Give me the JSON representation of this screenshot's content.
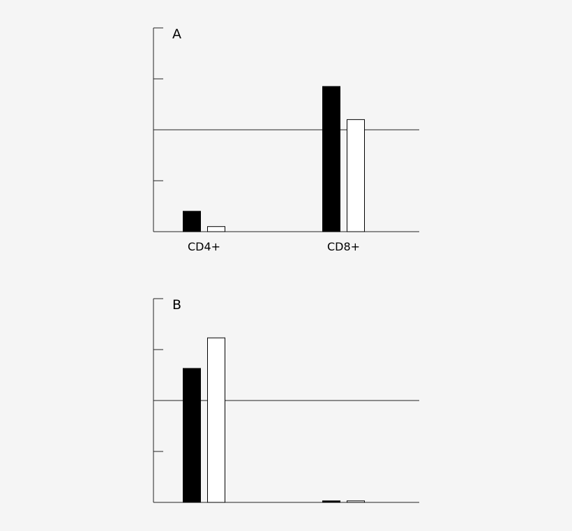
{
  "chart_data": [
    {
      "type": "bar",
      "panel_label": "A",
      "categories": [
        "CD4+",
        "CD8+"
      ],
      "series": [
        {
          "values": [
            0.4,
            2.85
          ],
          "color": "#000000"
        },
        {
          "values": [
            0.1,
            2.2
          ],
          "color": "#ffffff"
        }
      ],
      "ylim": [
        0,
        4
      ],
      "yticks": [
        0,
        1,
        2,
        3,
        4
      ],
      "reference_line": 2,
      "grid": false
    },
    {
      "type": "bar",
      "panel_label": "B",
      "categories": [
        "",
        ""
      ],
      "series": [
        {
          "values": [
            2.63,
            0.03
          ],
          "color": "#000000"
        },
        {
          "values": [
            3.23,
            0.03
          ],
          "color": "#ffffff"
        }
      ],
      "ylim": [
        0,
        4
      ],
      "yticks": [
        0,
        1,
        2,
        3,
        4
      ],
      "reference_line": 2,
      "grid": false
    }
  ]
}
